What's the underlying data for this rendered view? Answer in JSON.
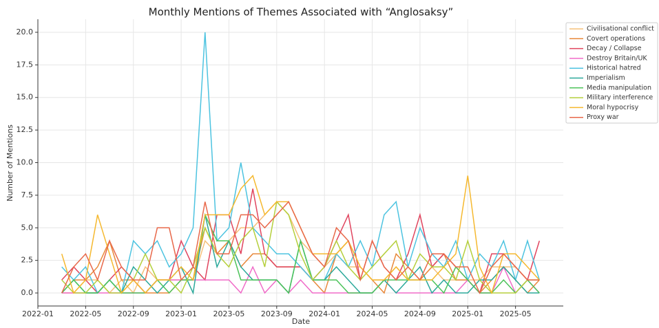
{
  "chart_data": {
    "type": "line",
    "title": "Monthly Mentions of Themes Associated with “Anglosaksy”",
    "x_label": "Date",
    "y_label": "Number of Mentions",
    "x": [
      "2022-03",
      "2022-04",
      "2022-05",
      "2022-06",
      "2022-07",
      "2022-08",
      "2022-09",
      "2022-10",
      "2022-11",
      "2022-12",
      "2023-01",
      "2023-02",
      "2023-03",
      "2023-04",
      "2023-05",
      "2023-06",
      "2023-07",
      "2023-08",
      "2023-09",
      "2023-10",
      "2023-11",
      "2023-12",
      "2024-01",
      "2024-02",
      "2024-03",
      "2024-04",
      "2024-05",
      "2024-06",
      "2024-07",
      "2024-08",
      "2024-09",
      "2024-10",
      "2024-11",
      "2024-12",
      "2025-01",
      "2025-02",
      "2025-03",
      "2025-04",
      "2025-05",
      "2025-06",
      "2025-07"
    ],
    "xlim": [
      "2022-01",
      "2025-09"
    ],
    "xticks": [
      "2022-01",
      "2022-05",
      "2022-09",
      "2023-01",
      "2023-05",
      "2023-09",
      "2024-01",
      "2024-05",
      "2024-09",
      "2025-01",
      "2025-05"
    ],
    "ylim": [
      -1,
      21
    ],
    "yticks": [
      {
        "value": 0,
        "label": "0.0"
      },
      {
        "value": 2.5,
        "label": "2.5"
      },
      {
        "value": 5,
        "label": "5.0"
      },
      {
        "value": 7.5,
        "label": "7.5"
      },
      {
        "value": 10,
        "label": "10.0"
      },
      {
        "value": 12.5,
        "label": "12.5"
      },
      {
        "value": 15,
        "label": "15.0"
      },
      {
        "value": 17.5,
        "label": "17.5"
      },
      {
        "value": 20,
        "label": "20.0"
      }
    ],
    "grid": true,
    "legend": "outside upper right",
    "series": [
      {
        "name": "Civilisational conflict",
        "color": "#f5c07a",
        "values": [
          0,
          0,
          1,
          1,
          0,
          1,
          0,
          2,
          1,
          1,
          1,
          1,
          4,
          3,
          4,
          5,
          5,
          6,
          7,
          6,
          4,
          3,
          2,
          3,
          2,
          2,
          1,
          1,
          2,
          1,
          1,
          2,
          1,
          1,
          1,
          1,
          2,
          2,
          2,
          1,
          1
        ]
      },
      {
        "name": "Covert operations",
        "color": "#e8883a",
        "values": [
          0,
          1,
          1,
          2,
          4,
          1,
          1,
          0,
          0,
          0,
          1,
          1,
          5,
          3,
          4,
          2,
          3,
          3,
          2,
          2,
          2,
          1,
          0,
          3,
          4,
          2,
          1,
          0,
          3,
          2,
          1,
          2,
          3,
          1,
          1,
          0,
          1,
          2,
          1,
          0,
          1
        ]
      },
      {
        "name": "Decay / Collapse",
        "color": "#e0445e",
        "values": [
          1,
          2,
          1,
          0,
          1,
          2,
          1,
          0,
          1,
          1,
          4,
          2,
          1,
          6,
          6,
          3,
          8,
          3,
          2,
          2,
          2,
          1,
          2,
          4,
          6,
          1,
          4,
          2,
          1,
          3,
          6,
          2,
          3,
          2,
          1,
          0,
          3,
          3,
          2,
          1,
          4
        ]
      },
      {
        "name": "Destroy Britain/UK",
        "color": "#f06bc8",
        "values": [
          0,
          0,
          0,
          0,
          0,
          0,
          0,
          0,
          1,
          1,
          1,
          1,
          1,
          1,
          1,
          0,
          2,
          0,
          1,
          0,
          1,
          0,
          0,
          0,
          0,
          0,
          0,
          1,
          0,
          0,
          0,
          0,
          0,
          0,
          1,
          0,
          0,
          2,
          0,
          1,
          0
        ]
      },
      {
        "name": "Historical hatred",
        "color": "#4cc3e0",
        "values": [
          2,
          1,
          2,
          0,
          1,
          0,
          4,
          3,
          4,
          2,
          3,
          5,
          20,
          4,
          5,
          10,
          5,
          4,
          3,
          3,
          2,
          1,
          1,
          3,
          2,
          4,
          2,
          6,
          7,
          2,
          5,
          3,
          2,
          4,
          1,
          3,
          2,
          4,
          1,
          4,
          1
        ]
      },
      {
        "name": "Imperialism",
        "color": "#2aa89a",
        "values": [
          0,
          1,
          0,
          0,
          1,
          0,
          2,
          1,
          0,
          1,
          2,
          0,
          6,
          2,
          4,
          2,
          1,
          1,
          1,
          0,
          4,
          1,
          1,
          2,
          1,
          0,
          0,
          1,
          0,
          1,
          2,
          0,
          1,
          0,
          0,
          1,
          1,
          2,
          1,
          0,
          0
        ]
      },
      {
        "name": "Media manipulation",
        "color": "#4cc35a",
        "values": [
          0,
          1,
          0,
          0,
          1,
          0,
          0,
          0,
          1,
          0,
          1,
          1,
          6,
          4,
          4,
          1,
          1,
          1,
          1,
          0,
          4,
          1,
          1,
          1,
          0,
          0,
          0,
          1,
          1,
          1,
          1,
          1,
          0,
          2,
          1,
          0,
          0,
          1,
          0,
          1,
          0
        ]
      },
      {
        "name": "Military interference",
        "color": "#b5cf3c",
        "values": [
          1,
          0,
          0,
          1,
          0,
          0,
          1,
          3,
          1,
          1,
          0,
          2,
          5,
          3,
          2,
          4,
          5,
          2,
          7,
          6,
          3,
          1,
          2,
          4,
          2,
          1,
          2,
          3,
          4,
          1,
          3,
          2,
          2,
          1,
          4,
          1,
          0,
          0,
          0,
          1,
          1
        ]
      },
      {
        "name": "Moral hypocrisy",
        "color": "#f5b82e",
        "values": [
          3,
          0,
          1,
          6,
          3,
          0,
          1,
          0,
          1,
          1,
          2,
          1,
          6,
          6,
          6,
          8,
          9,
          6,
          7,
          7,
          5,
          3,
          3,
          3,
          4,
          2,
          1,
          1,
          2,
          1,
          1,
          1,
          2,
          3,
          9,
          2,
          0,
          3,
          3,
          2,
          1
        ]
      },
      {
        "name": "Proxy war",
        "color": "#e8684a",
        "values": [
          0,
          2,
          3,
          1,
          4,
          2,
          1,
          1,
          5,
          5,
          1,
          2,
          7,
          3,
          3,
          6,
          6,
          5,
          6,
          7,
          5,
          3,
          2,
          5,
          4,
          1,
          4,
          2,
          1,
          2,
          1,
          3,
          3,
          2,
          2,
          0,
          2,
          3,
          2,
          1,
          1
        ]
      }
    ]
  }
}
